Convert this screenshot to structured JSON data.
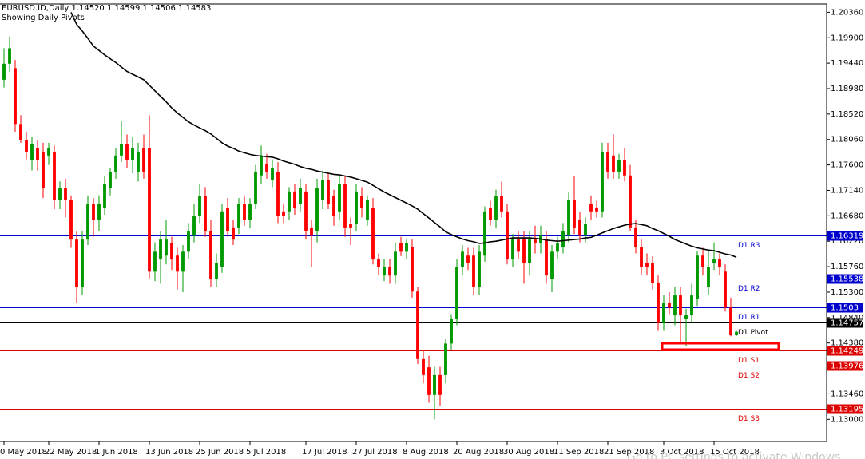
{
  "header": {
    "symbol_line": "EURUSD.ID,Daily 1.14520 1.14599 1.14506 1.14583",
    "indicator_note": "Showing Daily Pivots"
  },
  "watermark": "Go to PC settings to activate Windows",
  "chart_data": {
    "type": "candlestick",
    "up_color": "#009900",
    "down_color": "#ff0000",
    "categories": [
      "0 May 2018",
      null,
      null,
      null,
      null,
      null,
      null,
      null,
      "22 May 2018",
      null,
      null,
      null,
      null,
      null,
      null,
      null,
      null,
      "1 Jun 2018",
      null,
      null,
      null,
      null,
      null,
      null,
      null,
      null,
      "13 Jun 2018",
      null,
      null,
      null,
      null,
      null,
      null,
      null,
      null,
      "25 Jun 2018",
      null,
      null,
      null,
      null,
      null,
      null,
      null,
      null,
      "5 Jul 2018",
      null,
      null,
      null,
      null,
      null,
      null,
      null,
      null,
      null,
      "17 Jul 2018",
      null,
      null,
      null,
      null,
      null,
      null,
      null,
      null,
      "27 Jul 2018",
      null,
      null,
      null,
      null,
      null,
      null,
      null,
      null,
      "8 Aug 2018",
      null,
      null,
      null,
      null,
      null,
      null,
      null,
      null,
      "20 Aug 2018",
      null,
      null,
      null,
      null,
      null,
      null,
      null,
      null,
      "30 Aug 2018",
      null,
      null,
      null,
      null,
      null,
      null,
      null,
      null,
      "11 Sep 2018",
      null,
      null,
      null,
      null,
      null,
      null,
      null,
      null,
      "21 Sep 2018",
      null,
      null,
      null,
      null,
      null,
      null,
      null,
      null,
      null,
      "3 Oct 2018",
      null,
      null,
      null,
      null,
      null,
      null,
      null,
      null,
      "15 Oct 2018",
      null,
      null,
      null,
      null
    ],
    "open": [
      1.1914,
      1.1943,
      1.1935,
      1.1834,
      1.1805,
      1.1769,
      1.1791,
      1.1784,
      1.1777,
      1.1784,
      1.1697,
      1.1719,
      1.1697,
      1.1625,
      1.1539,
      1.1625,
      1.169,
      1.1661,
      1.1683,
      1.1719,
      1.1748,
      1.1777,
      1.1798,
      1.1769,
      1.1748,
      1.1791,
      1.1791,
      1.1567,
      1.1589,
      1.1596,
      1.1618,
      1.1596,
      1.1567,
      1.1603,
      1.1632,
      1.1668,
      1.1704,
      1.164,
      1.1553,
      1.1575,
      1.1683,
      1.1647,
      1.1647,
      1.169,
      1.1661,
      1.169,
      1.1741,
      1.1762,
      1.1733,
      1.1748,
      1.1676,
      1.1676,
      1.1712,
      1.169,
      1.1712,
      1.1647,
      1.164,
      1.1697,
      1.1733,
      1.1704,
      1.1676,
      1.1726,
      1.1654,
      1.1654,
      1.1704,
      1.1661,
      1.1683,
      1.1589,
      1.156,
      1.1575,
      1.156,
      1.1618,
      1.1603,
      1.1611,
      1.1531,
      1.1409,
      1.1394,
      1.1344,
      1.138,
      1.138,
      1.1437,
      1.1481,
      1.1575,
      1.1596,
      1.1596,
      1.1539,
      1.1596,
      1.1683,
      1.1661,
      1.1704,
      1.1676,
      1.1589,
      1.1625,
      1.1625,
      1.1582,
      1.1625,
      1.1618,
      1.1625,
      1.1553,
      1.1603,
      1.1611,
      1.1632,
      1.1697,
      1.1661,
      1.1632,
      1.169,
      1.1683,
      1.1676,
      1.1784,
      1.1777,
      1.1748,
      1.1769,
      1.1741,
      1.1647,
      1.1611,
      1.1582,
      1.1582,
      1.1546,
      1.1474,
      1.151,
      1.1488,
      1.1524,
      1.1481,
      1.1488,
      1.1517,
      1.1596,
      1.1539,
      1.1582,
      1.1589,
      1.1567,
      1.1502,
      1.1452
    ],
    "high": [
      1.1971,
      1.1992,
      1.195,
      1.185,
      1.182,
      1.181,
      1.1805,
      1.18,
      1.18,
      1.1795,
      1.173,
      1.1735,
      1.1705,
      1.164,
      1.164,
      1.1705,
      1.17,
      1.1705,
      1.174,
      1.1755,
      1.179,
      1.184,
      1.1815,
      1.181,
      1.18,
      1.1815,
      1.185,
      1.162,
      1.164,
      1.166,
      1.163,
      1.161,
      1.1615,
      1.1655,
      1.169,
      1.1725,
      1.172,
      1.166,
      1.16,
      1.169,
      1.17,
      1.166,
      1.17,
      1.1705,
      1.17,
      1.176,
      1.1795,
      1.178,
      1.177,
      1.1765,
      1.169,
      1.172,
      1.1725,
      1.1735,
      1.1725,
      1.166,
      1.1735,
      1.175,
      1.1745,
      1.1715,
      1.174,
      1.174,
      1.1665,
      1.1725,
      1.172,
      1.1705,
      1.17,
      1.16,
      1.159,
      1.159,
      1.162,
      1.163,
      1.1625,
      1.1625,
      1.154,
      1.1425,
      1.1415,
      1.1395,
      1.1395,
      1.1445,
      1.149,
      1.159,
      1.1615,
      1.161,
      1.161,
      1.1615,
      1.1685,
      1.1695,
      1.1715,
      1.173,
      1.169,
      1.1635,
      1.164,
      1.164,
      1.164,
      1.165,
      1.165,
      1.164,
      1.1615,
      1.163,
      1.1655,
      1.171,
      1.174,
      1.1675,
      1.1665,
      1.1705,
      1.1695,
      1.18,
      1.18,
      1.1815,
      1.178,
      1.179,
      1.176,
      1.166,
      1.1625,
      1.16,
      1.1595,
      1.156,
      1.1525,
      1.153,
      1.154,
      1.154,
      1.15,
      1.1545,
      1.1605,
      1.161,
      1.1605,
      1.162,
      1.16,
      1.158,
      1.152,
      1.14599
    ],
    "low": [
      1.19,
      1.1928,
      1.182,
      1.18,
      1.177,
      1.175,
      1.175,
      1.17,
      1.176,
      1.168,
      1.168,
      1.1665,
      1.161,
      1.151,
      1.1525,
      1.1615,
      1.163,
      1.164,
      1.167,
      1.1705,
      1.1735,
      1.1765,
      1.1755,
      1.1745,
      1.173,
      1.1735,
      1.1555,
      1.155,
      1.1545,
      1.158,
      1.157,
      1.1535,
      1.153,
      1.159,
      1.162,
      1.1655,
      1.163,
      1.154,
      1.154,
      1.1565,
      1.163,
      1.1615,
      1.1635,
      1.165,
      1.1645,
      1.168,
      1.1725,
      1.1735,
      1.172,
      1.1655,
      1.1655,
      1.166,
      1.167,
      1.1675,
      1.1625,
      1.1575,
      1.162,
      1.168,
      1.168,
      1.165,
      1.166,
      1.163,
      1.1615,
      1.164,
      1.1665,
      1.165,
      1.158,
      1.156,
      1.155,
      1.1545,
      1.1545,
      1.1595,
      1.159,
      1.152,
      1.14,
      1.1365,
      1.133,
      1.13,
      1.1325,
      1.1365,
      1.1425,
      1.147,
      1.156,
      1.157,
      1.1525,
      1.1525,
      1.1585,
      1.165,
      1.1645,
      1.1665,
      1.158,
      1.1575,
      1.159,
      1.1545,
      1.156,
      1.16,
      1.16,
      1.1545,
      1.153,
      1.159,
      1.16,
      1.162,
      1.1635,
      1.162,
      1.162,
      1.166,
      1.1665,
      1.1665,
      1.1735,
      1.1735,
      1.1735,
      1.173,
      1.164,
      1.16,
      1.156,
      1.156,
      1.1535,
      1.146,
      1.146,
      1.149,
      1.147,
      1.144,
      1.1432,
      1.1475,
      1.1505,
      1.156,
      1.1525,
      1.157,
      1.156,
      1.1495,
      1.145,
      1.14506
    ],
    "close": [
      1.1943,
      1.1971,
      1.1834,
      1.1805,
      1.1784,
      1.1798,
      1.1769,
      1.1719,
      1.1791,
      1.1697,
      1.1719,
      1.1697,
      1.1625,
      1.1539,
      1.1625,
      1.169,
      1.1661,
      1.169,
      1.1726,
      1.1748,
      1.1777,
      1.1798,
      1.1769,
      1.1791,
      1.1784,
      1.1748,
      1.1567,
      1.1603,
      1.1625,
      1.1625,
      1.1589,
      1.1567,
      1.1603,
      1.164,
      1.1668,
      1.1704,
      1.164,
      1.1553,
      1.1582,
      1.1676,
      1.164,
      1.1625,
      1.169,
      1.1661,
      1.169,
      1.1748,
      1.1777,
      1.1748,
      1.1755,
      1.1668,
      1.1668,
      1.1712,
      1.1683,
      1.1719,
      1.164,
      1.1632,
      1.1719,
      1.1733,
      1.169,
      1.1668,
      1.1726,
      1.1647,
      1.1647,
      1.1712,
      1.1683,
      1.1697,
      1.1589,
      1.1575,
      1.1575,
      1.156,
      1.1603,
      1.1603,
      1.1618,
      1.1531,
      1.1409,
      1.138,
      1.1344,
      1.138,
      1.1344,
      1.1437,
      1.1481,
      1.1575,
      1.1603,
      1.1582,
      1.1539,
      1.1603,
      1.1676,
      1.1661,
      1.1704,
      1.1676,
      1.1589,
      1.1625,
      1.1603,
      1.1582,
      1.1625,
      1.1618,
      1.1632,
      1.156,
      1.1603,
      1.1618,
      1.164,
      1.1697,
      1.1647,
      1.1632,
      1.1654,
      1.1676,
      1.1676,
      1.1784,
      1.1748,
      1.1748,
      1.1769,
      1.1741,
      1.1647,
      1.1611,
      1.1575,
      1.1575,
      1.1546,
      1.1474,
      1.151,
      1.1502,
      1.1524,
      1.1488,
      1.1488,
      1.1524,
      1.1596,
      1.1575,
      1.1575,
      1.1589,
      1.1575,
      1.1502,
      1.1452,
      1.14583
    ],
    "moving_average": {
      "color": "#000000",
      "values": [
        null,
        null,
        null,
        null,
        null,
        null,
        null,
        null,
        null,
        null,
        null,
        null,
        1.2036,
        1.2014,
        1.2002,
        1.1989,
        1.1975,
        1.1967,
        1.1959,
        1.1952,
        1.1945,
        1.1937,
        1.1929,
        1.1924,
        1.1919,
        1.1914,
        1.1904,
        1.1894,
        1.1884,
        1.1874,
        1.1863,
        1.1854,
        1.1846,
        1.1838,
        1.1832,
        1.1827,
        1.1822,
        1.1816,
        1.1808,
        1.18,
        1.1794,
        1.179,
        1.1785,
        1.1782,
        1.1779,
        1.1777,
        1.1776,
        1.1775,
        1.1774,
        1.1771,
        1.1767,
        1.1764,
        1.1761,
        1.1757,
        1.1754,
        1.1752,
        1.1749,
        1.1747,
        1.1745,
        1.1743,
        1.1742,
        1.174,
        1.1738,
        1.1735,
        1.1732,
        1.1729,
        1.1723,
        1.1717,
        1.1711,
        1.1706,
        1.1701,
        1.1696,
        1.1691,
        1.1686,
        1.168,
        1.1672,
        1.1664,
        1.1656,
        1.1648,
        1.1639,
        1.1634,
        1.163,
        1.1626,
        1.1623,
        1.1621,
        1.1618,
        1.1619,
        1.1621,
        1.1622,
        1.1624,
        1.1626,
        1.1628,
        1.1628,
        1.1628,
        1.1628,
        1.1627,
        1.1626,
        1.1624,
        1.1623,
        1.1622,
        1.1623,
        1.1624,
        1.1625,
        1.1626,
        1.1628,
        1.1629,
        1.1633,
        1.1637,
        1.1641,
        1.1645,
        1.1648,
        1.1651,
        1.1653,
        1.1654,
        1.1652,
        1.165,
        1.1645,
        1.1641,
        1.1636,
        1.1631,
        1.1625,
        1.1621,
        1.1617,
        1.1613,
        1.161,
        1.1608,
        1.1606,
        1.1605,
        1.1602,
        1.1599,
        1.1597,
        1.1593
      ]
    },
    "levels": [
      {
        "name": "D1 R3",
        "value": 1.16319,
        "color": "#0000cc"
      },
      {
        "name": "D1 R2",
        "value": 1.15538,
        "color": "#0000cc"
      },
      {
        "name": "D1 R1",
        "value": 1.1503,
        "color": "#0000cc"
      },
      {
        "name": "D1 Pivot",
        "value": 1.14757,
        "color": "#000000"
      },
      {
        "name": "D1 S1",
        "value": 1.14249,
        "color": "#dd0000"
      },
      {
        "name": "D1 S2",
        "value": 1.13976,
        "color": "#dd0000"
      },
      {
        "name": "D1 S3",
        "value": 1.13195,
        "color": "#dd0000"
      }
    ],
    "ylim": [
      1.126,
      1.2051
    ],
    "yticks": [
      {
        "value": 1.2036,
        "label": "1.20360"
      },
      {
        "value": 1.199,
        "label": "1.19900"
      },
      {
        "value": 1.1944,
        "label": "1.19440"
      },
      {
        "value": 1.1898,
        "label": "1.18980"
      },
      {
        "value": 1.1852,
        "label": "1.18520"
      },
      {
        "value": 1.1806,
        "label": "1.18060"
      },
      {
        "value": 1.176,
        "label": "1.17600"
      },
      {
        "value": 1.1714,
        "label": "1.17140"
      },
      {
        "value": 1.1668,
        "label": "1.16680"
      },
      {
        "value": 1.1622,
        "label": "1.16220"
      },
      {
        "value": 1.1576,
        "label": "1.15760"
      },
      {
        "value": 1.153,
        "label": "1.15300"
      },
      {
        "value": 1.1484,
        "label": "1.14840"
      },
      {
        "value": 1.1438,
        "label": "1.14380"
      },
      {
        "value": 1.1392,
        "label": "1.13920"
      },
      {
        "value": 1.1346,
        "label": "1.13460"
      },
      {
        "value": 1.13,
        "label": "1.13000"
      }
    ]
  }
}
